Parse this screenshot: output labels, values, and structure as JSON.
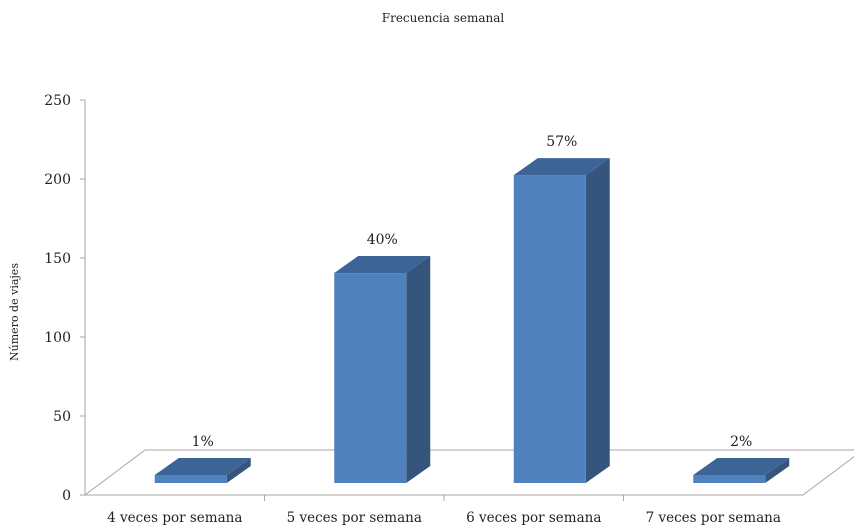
{
  "chart_data": {
    "type": "bar",
    "title": "Frecuencia semanal",
    "ylabel": "Número de viajes",
    "xlabel": "",
    "ylim": [
      0,
      250
    ],
    "yticks": [
      0,
      50,
      100,
      150,
      200,
      250
    ],
    "categories": [
      "4 veces por semana",
      "5  veces por semana",
      "6  veces por semana",
      "7  veces por semana"
    ],
    "values": [
      5,
      143,
      205,
      7
    ],
    "data_labels": [
      "1%",
      "40%",
      "57%",
      "2%"
    ],
    "bar_colors": {
      "front": "#4f81bd",
      "side": "#35557c",
      "top": "#3c6496"
    },
    "grid": false,
    "legend": "none"
  }
}
